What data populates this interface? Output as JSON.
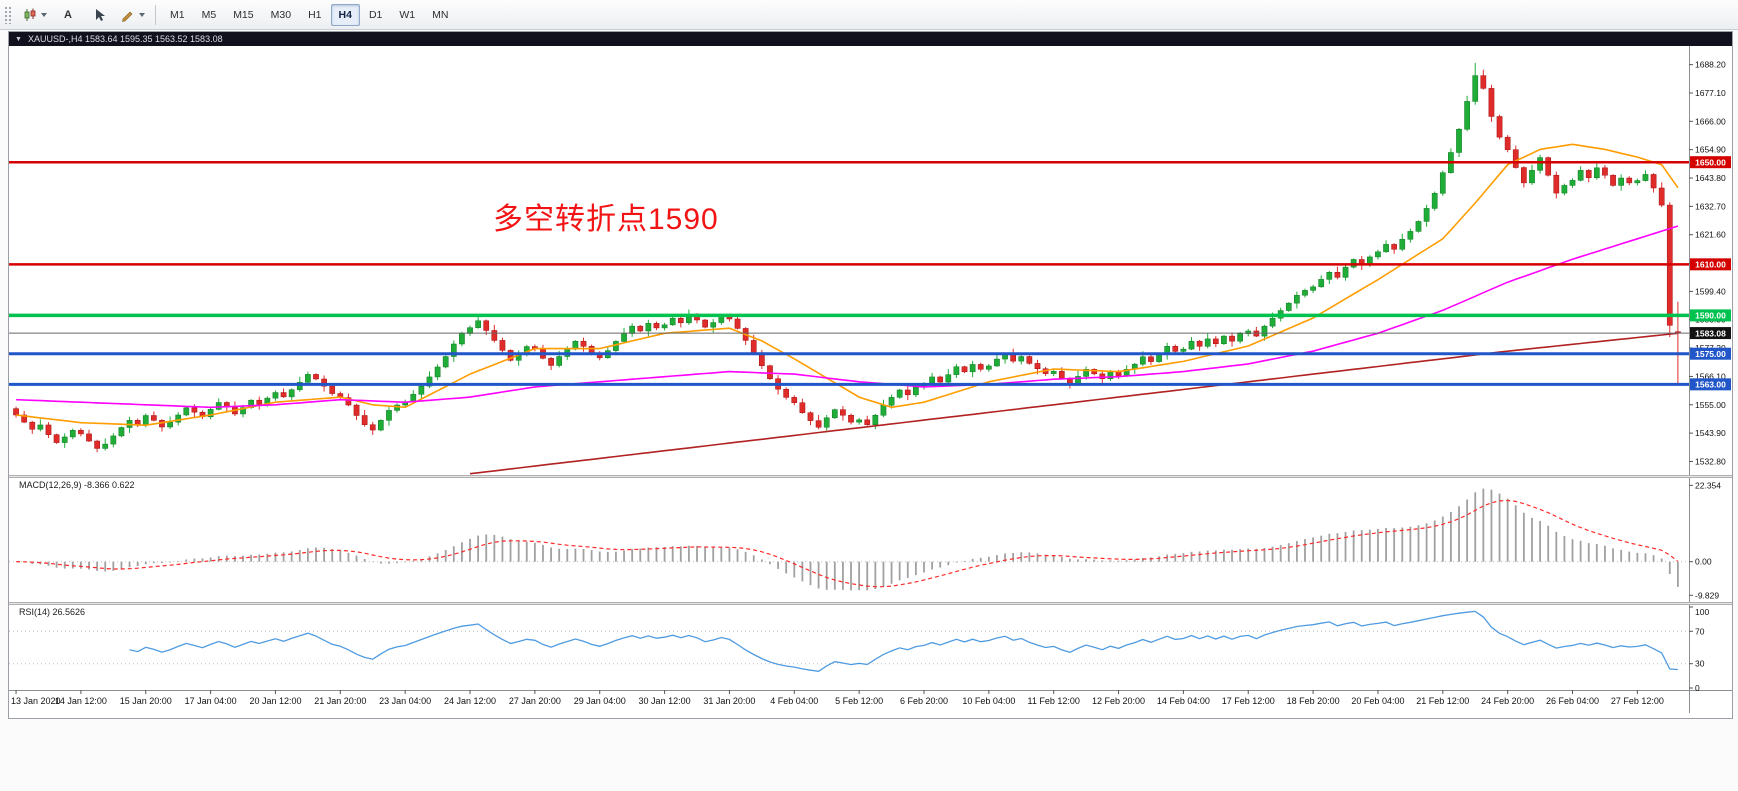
{
  "toolbar": {
    "tool_labels": {
      "text_tool": "A"
    },
    "timeframes": [
      "M1",
      "M5",
      "M15",
      "M30",
      "H1",
      "H4",
      "D1",
      "W1",
      "MN"
    ],
    "active_timeframe": "H4"
  },
  "chart_window": {
    "collapse_icon": "▼",
    "title": "XAUUSD-,H4  1583.64 1595.35 1563.52 1583.08"
  },
  "annotation": {
    "text": "多空转折点1590",
    "color": "#f21414"
  },
  "indicators": {
    "macd_label": "MACD(12,26,9) -8.366 0.622",
    "rsi_label": "RSI(14) 26.5626"
  },
  "chart_data": {
    "type": "candlestick",
    "symbol": "XAUUSD-",
    "timeframe": "H4",
    "ohlc_current": {
      "open": 1583.64,
      "high": 1595.35,
      "low": 1563.52,
      "close": 1583.08
    },
    "price_range": {
      "max": 1695.5,
      "min": 1527.5
    },
    "macd_range": {
      "max": 24.5,
      "min": -11.8
    },
    "bars_per_label": 8,
    "time_labels": [
      "13 Jan 2020",
      "14 Jan 12:00",
      "15 Jan 20:00",
      "17 Jan 04:00",
      "20 Jan 12:00",
      "21 Jan 20:00",
      "23 Jan 04:00",
      "24 Jan 12:00",
      "27 Jan 20:00",
      "29 Jan 04:00",
      "30 Jan 12:00",
      "31 Jan 20:00",
      "4 Feb 04:00",
      "5 Feb 12:00",
      "6 Feb 20:00",
      "10 Feb 04:00",
      "11 Feb 12:00",
      "12 Feb 20:00",
      "14 Feb 04:00",
      "17 Feb 12:00",
      "18 Feb 20:00",
      "20 Feb 04:00",
      "21 Feb 12:00",
      "24 Feb 20:00",
      "26 Feb 04:00",
      "27 Feb 12:00"
    ],
    "y_ticks": [
      1688.2,
      1677.1,
      1666.0,
      1654.9,
      1643.8,
      1632.7,
      1621.6,
      1610.5,
      1599.4,
      1588.3,
      1577.2,
      1566.1,
      1555.0,
      1543.9,
      1532.8
    ],
    "h_lines": [
      {
        "price": 1650.0,
        "label": "1650.00",
        "color": "#d40000",
        "width": 2.5
      },
      {
        "price": 1610.0,
        "label": "1610.00",
        "color": "#d40000",
        "width": 2.5
      },
      {
        "price": 1590.0,
        "label": "1590.00",
        "color": "#00c24e",
        "width": 3.5
      },
      {
        "price": 1575.0,
        "label": "1575.00",
        "color": "#2056c8",
        "width": 3
      },
      {
        "price": 1563.0,
        "label": "1563.00",
        "color": "#2056c8",
        "width": 3
      }
    ],
    "current_price": {
      "value": 1583.08,
      "label": "1583.08",
      "color": "#666666",
      "badge": "#111111"
    },
    "first_open": 1553.5,
    "closes": [
      1551.0,
      1548.2,
      1545.4,
      1547.1,
      1543.3,
      1540.2,
      1542.4,
      1545.0,
      1543.6,
      1540.8,
      1537.9,
      1539.6,
      1542.8,
      1546.1,
      1548.9,
      1547.2,
      1550.8,
      1548.9,
      1546.3,
      1548.2,
      1551.0,
      1553.8,
      1552.1,
      1550.3,
      1553.2,
      1555.9,
      1554.1,
      1551.4,
      1553.9,
      1556.8,
      1555.2,
      1557.6,
      1559.8,
      1558.1,
      1560.9,
      1563.8,
      1566.9,
      1565.1,
      1562.3,
      1559.4,
      1557.8,
      1554.9,
      1550.8,
      1547.2,
      1545.1,
      1548.9,
      1552.8,
      1554.9,
      1556.2,
      1559.1,
      1562.3,
      1565.9,
      1569.8,
      1573.9,
      1578.8,
      1582.9,
      1585.2,
      1587.9,
      1584.1,
      1580.2,
      1576.3,
      1572.4,
      1574.9,
      1577.8,
      1576.9,
      1573.2,
      1570.4,
      1573.9,
      1576.8,
      1579.9,
      1577.9,
      1575.2,
      1573.4,
      1576.2,
      1579.8,
      1582.9,
      1585.8,
      1583.9,
      1586.9,
      1585.1,
      1586.3,
      1588.9,
      1587.1,
      1589.8,
      1588.2,
      1585.4,
      1587.2,
      1589.9,
      1588.6,
      1584.9,
      1580.2,
      1575.4,
      1570.3,
      1565.2,
      1561.1,
      1557.9,
      1555.8,
      1551.9,
      1548.8,
      1546.2,
      1549.9,
      1553.1,
      1550.9,
      1548.2,
      1549.1,
      1547.2,
      1550.9,
      1554.8,
      1557.9,
      1560.8,
      1558.9,
      1561.9,
      1563.1,
      1565.9,
      1563.9,
      1566.8,
      1569.9,
      1567.9,
      1570.8,
      1568.9,
      1570.2,
      1572.9,
      1574.8,
      1572.1,
      1573.9,
      1571.2,
      1569.1,
      1567.2,
      1568.1,
      1565.3,
      1563.2,
      1566.1,
      1568.9,
      1567.1,
      1565.2,
      1567.9,
      1566.2,
      1568.9,
      1570.9,
      1573.8,
      1571.9,
      1574.8,
      1577.9,
      1575.9,
      1576.8,
      1579.9,
      1577.9,
      1580.8,
      1578.9,
      1581.9,
      1579.9,
      1582.8,
      1583.9,
      1581.9,
      1585.8,
      1588.9,
      1591.9,
      1594.8,
      1597.9,
      1599.8,
      1601.2,
      1604.1,
      1606.9,
      1604.9,
      1608.9,
      1611.9,
      1609.9,
      1612.9,
      1614.9,
      1617.8,
      1615.9,
      1619.8,
      1622.9,
      1626.8,
      1631.9,
      1637.8,
      1645.9,
      1653.8,
      1662.9,
      1673.8,
      1683.9,
      1678.9,
      1667.9,
      1659.8,
      1654.9,
      1647.9,
      1641.9,
      1646.8,
      1651.8,
      1644.9,
      1637.9,
      1640.9,
      1642.9,
      1646.8,
      1643.9,
      1647.8,
      1644.9,
      1640.9,
      1643.8,
      1641.9,
      1642.8,
      1645.2,
      1639.9,
      1633.2,
      1586.1,
      1583.08
    ],
    "wick_up_pattern": [
      0.8,
      1.6,
      0.5,
      2.2,
      1.1,
      0.4,
      1.4,
      0.7
    ],
    "wick_down_pattern": [
      1.0,
      0.4,
      1.8,
      0.8,
      1.3,
      0.5,
      2.1,
      0.9
    ],
    "overrides": [
      {
        "i": 10,
        "low": 1536.4
      },
      {
        "i": 44,
        "low": 1543.2
      },
      {
        "i": 83,
        "high": 1592.3
      },
      {
        "i": 180,
        "high": 1688.9
      },
      {
        "i": 181,
        "high": 1686.2
      },
      {
        "i": 204,
        "low": 1581.5
      },
      {
        "i": 205,
        "open": 1583.64,
        "high": 1595.35,
        "low": 1563.52,
        "close": 1583.08
      }
    ],
    "overlays": [
      {
        "name": "ma-fast-orange",
        "color": "#ff9d00",
        "anchors": [
          [
            0,
            1551
          ],
          [
            8,
            1548
          ],
          [
            16,
            1547
          ],
          [
            24,
            1551
          ],
          [
            32,
            1556
          ],
          [
            40,
            1558
          ],
          [
            44,
            1555
          ],
          [
            48,
            1554
          ],
          [
            56,
            1567
          ],
          [
            64,
            1577
          ],
          [
            72,
            1577
          ],
          [
            80,
            1583
          ],
          [
            88,
            1585
          ],
          [
            92,
            1580
          ],
          [
            96,
            1573
          ],
          [
            104,
            1558
          ],
          [
            108,
            1554
          ],
          [
            112,
            1556
          ],
          [
            120,
            1564
          ],
          [
            128,
            1569
          ],
          [
            136,
            1568
          ],
          [
            144,
            1572
          ],
          [
            152,
            1578
          ],
          [
            160,
            1589
          ],
          [
            168,
            1604
          ],
          [
            176,
            1620
          ],
          [
            180,
            1634
          ],
          [
            184,
            1649
          ],
          [
            188,
            1655
          ],
          [
            192,
            1657
          ],
          [
            196,
            1655
          ],
          [
            200,
            1652
          ],
          [
            203,
            1649
          ],
          [
            205,
            1640
          ]
        ]
      },
      {
        "name": "ma-mid-magenta",
        "color": "#ff00ff",
        "anchors": [
          [
            0,
            1557
          ],
          [
            8,
            1556
          ],
          [
            16,
            1555
          ],
          [
            24,
            1554
          ],
          [
            32,
            1555
          ],
          [
            40,
            1557
          ],
          [
            48,
            1556
          ],
          [
            56,
            1558
          ],
          [
            64,
            1562
          ],
          [
            72,
            1564
          ],
          [
            80,
            1566
          ],
          [
            88,
            1568
          ],
          [
            96,
            1567
          ],
          [
            104,
            1564
          ],
          [
            112,
            1562
          ],
          [
            120,
            1563
          ],
          [
            128,
            1565
          ],
          [
            136,
            1566
          ],
          [
            144,
            1568
          ],
          [
            152,
            1571
          ],
          [
            160,
            1576
          ],
          [
            168,
            1583
          ],
          [
            176,
            1592
          ],
          [
            184,
            1603
          ],
          [
            192,
            1612
          ],
          [
            200,
            1620
          ],
          [
            205,
            1625
          ]
        ]
      },
      {
        "name": "ma-slow-darkred",
        "color": "#b22222",
        "anchors": [
          [
            56,
            1528
          ],
          [
            72,
            1534
          ],
          [
            88,
            1540
          ],
          [
            104,
            1546
          ],
          [
            120,
            1552
          ],
          [
            136,
            1558
          ],
          [
            152,
            1564
          ],
          [
            168,
            1570
          ],
          [
            184,
            1576
          ],
          [
            196,
            1580
          ],
          [
            205,
            1583
          ]
        ]
      }
    ],
    "macd": {
      "fast": 12,
      "slow": 26,
      "signal": 9,
      "last_main": -8.366,
      "last_signal": 0.622,
      "axis": [
        {
          "v": 22.354,
          "t": "22.354"
        },
        {
          "v": 0,
          "t": "0.00"
        },
        {
          "v": -9.829,
          "t": "-9.829"
        }
      ]
    },
    "rsi": {
      "period": 14,
      "last": 26.5626,
      "levels": [
        70,
        30
      ],
      "axis": [
        {
          "v": 100,
          "t": "100"
        },
        {
          "v": 70,
          "t": "70"
        },
        {
          "v": 30,
          "t": "30"
        },
        {
          "v": 0,
          "t": "0"
        }
      ]
    },
    "colors": {
      "up": "#1fad38",
      "up_edge": "#0e7a22",
      "down": "#e02b2b",
      "down_edge": "#a31212",
      "macd_hist": "#a0a0a0",
      "macd_signal": "#ff2a2a",
      "rsi": "#4f9be0"
    }
  }
}
